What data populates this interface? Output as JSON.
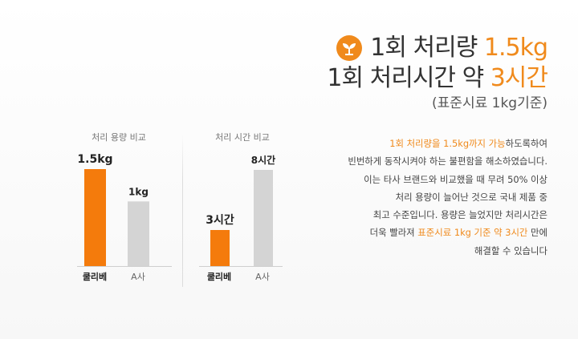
{
  "headline": {
    "line1_prefix": "1회 처리량 ",
    "line1_highlight": "1.5kg",
    "line2_prefix": "1회 처리시간 약 ",
    "line2_highlight": "3시간",
    "line3": "(표준시료 1kg기준)"
  },
  "description": {
    "l1_highlight": "1회 처리량을 1.5kg까지 가능",
    "l1_rest": "하도록하여",
    "l2": "빈번하게 동작시켜야 하는 불편함을 해소하였습니다.",
    "l3": "이는 타사 브랜드와 비교했을 때 무려 50% 이상",
    "l4": "처리 용량이 늘어난 것으로 국내 제품 중",
    "l5": "최고 수준입니다. 용량은 늘었지만 처리시간은",
    "l6_prefix": "더욱 빨라져 ",
    "l6_highlight": "표준시료 1kg 기준 약 3시간",
    "l6_suffix": " 만에",
    "l7": "해결할 수 있습니다"
  },
  "colors": {
    "accent": "#f08a1c",
    "bar_main": "#f47b0c",
    "bar_other": "#d4d4d4"
  },
  "chart_data": [
    {
      "type": "bar",
      "title": "처리 용량 비교",
      "categories": [
        "쿨리베",
        "A사"
      ],
      "values": [
        1.5,
        1
      ],
      "data_labels": [
        "1.5kg",
        "1kg"
      ],
      "ylim": [
        0,
        1.5
      ]
    },
    {
      "type": "bar",
      "title": "처리 시간 비교",
      "categories": [
        "쿨리베",
        "A사"
      ],
      "values": [
        3,
        8
      ],
      "data_labels": [
        "3시간",
        "8시간"
      ],
      "ylim": [
        0,
        8
      ]
    }
  ]
}
